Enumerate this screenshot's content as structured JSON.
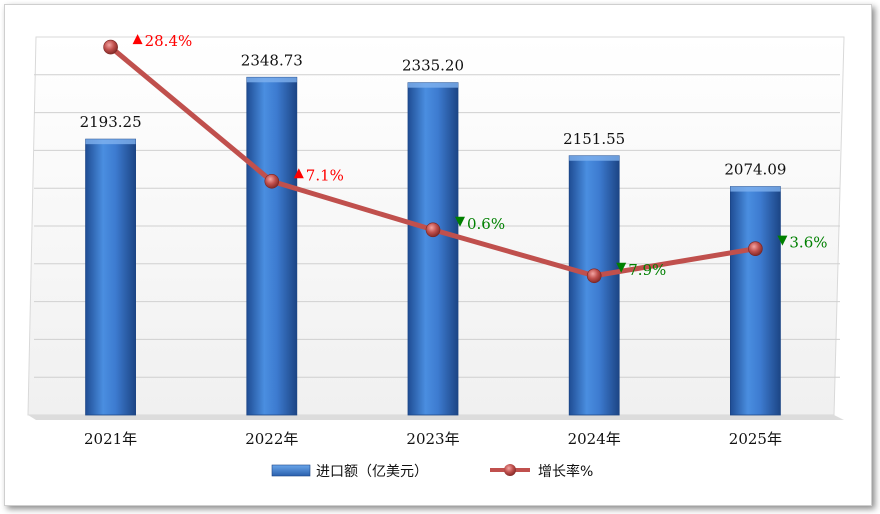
{
  "chart_data": {
    "type": "bar",
    "categories": [
      "2021年",
      "2022年",
      "2023年",
      "2024年",
      "2025年"
    ],
    "series": [
      {
        "name": "进口额（亿美元）",
        "type": "bar",
        "values": [
          2193.25,
          2348.73,
          2335.2,
          2151.55,
          2074.09
        ],
        "value_labels": [
          "2193.25",
          "2348.73",
          "2335.20",
          "2151.55",
          "2074.09"
        ],
        "color": "#3d7bd0"
      },
      {
        "name": "增长率%",
        "type": "line",
        "values": [
          28.4,
          7.1,
          -0.6,
          -7.9,
          -3.6
        ],
        "value_labels": [
          "28.4%",
          "7.1%",
          "0.6%",
          "7.9%",
          "3.6%"
        ],
        "color": "#c0504d"
      }
    ],
    "legend": "bottom",
    "grid": true,
    "colors": {
      "up": "#ff0000",
      "down": "#008000"
    }
  }
}
